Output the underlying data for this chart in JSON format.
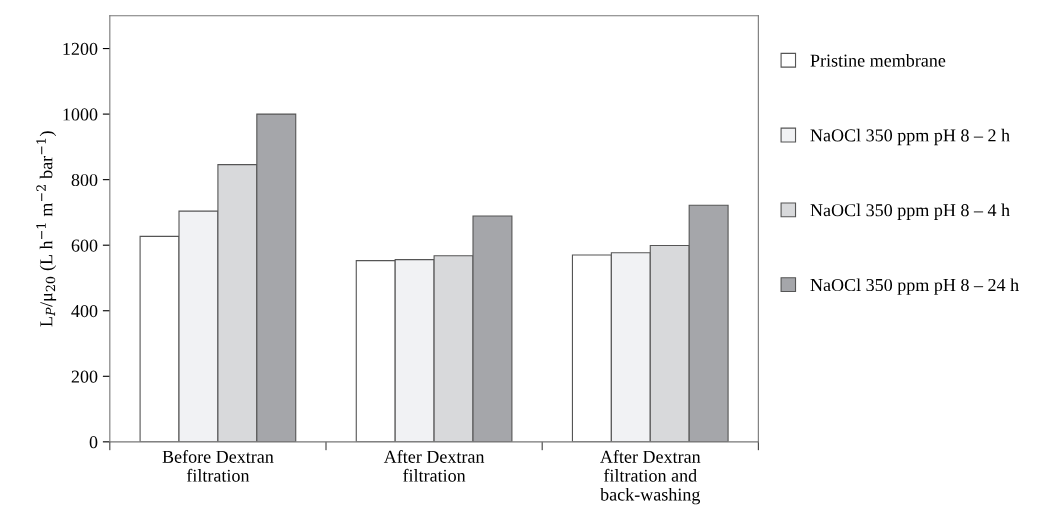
{
  "chart_data": {
    "type": "bar",
    "ylabel": "L$_{P}$/μ$_{20}$ (L h$^{−1}$ m$^{−2}$ bar$^{−1}$)",
    "categories": [
      "Before Dextran\nfiltration",
      "After Dextran\nfiltration",
      "After Dextran\nfiltration and\nback-washing"
    ],
    "series": [
      {
        "name": "Pristine membrane",
        "color": "#ffffff",
        "values": [
          627,
          553,
          570
        ]
      },
      {
        "name": "NaOCl 350 ppm pH 8 – 2 h",
        "color": "#f1f2f4",
        "values": [
          704,
          556,
          577
        ]
      },
      {
        "name": "NaOCl 350 ppm pH 8 – 4 h",
        "color": "#d8d9db",
        "values": [
          846,
          568,
          599
        ]
      },
      {
        "name": "NaOCl 350 ppm pH 8 – 24 h",
        "color": "#a5a6aa",
        "values": [
          1000,
          689,
          722
        ]
      }
    ],
    "ylim": [
      0,
      1300
    ],
    "yticks": [
      0,
      200,
      400,
      600,
      800,
      1000,
      1200
    ],
    "grid": false,
    "legend": "right"
  }
}
